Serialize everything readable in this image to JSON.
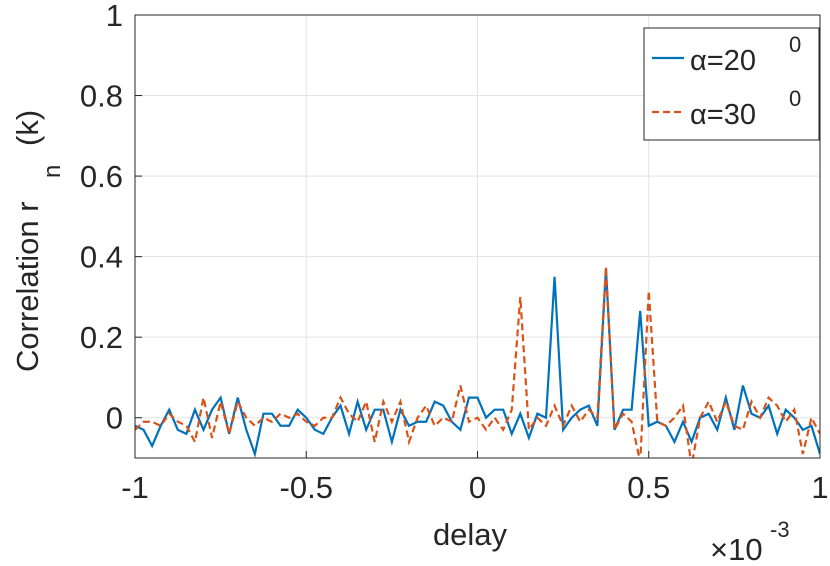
{
  "chart_data": {
    "type": "line",
    "xlabel": "delay",
    "x_exponent_base": "×10",
    "x_exponent": "-3",
    "ylabel": "Correlation r",
    "ylabel_subscript": "n",
    "ylabel_suffix": "(k)",
    "xlim": [
      -1,
      1
    ],
    "xticks": [
      -1,
      -0.5,
      0,
      0.5,
      1
    ],
    "ylim": [
      -0.1,
      1
    ],
    "yticks": [
      0,
      0.2,
      0.4,
      0.6,
      0.8,
      1
    ],
    "grid": true,
    "legend": "top-right",
    "x": [
      -1,
      -0.975,
      -0.95,
      -0.925,
      -0.9,
      -0.875,
      -0.85,
      -0.825,
      -0.8,
      -0.775,
      -0.75,
      -0.725,
      -0.7,
      -0.675,
      -0.65,
      -0.625,
      -0.6,
      -0.575,
      -0.55,
      -0.525,
      -0.5,
      -0.475,
      -0.45,
      -0.425,
      -0.4,
      -0.375,
      -0.35,
      -0.325,
      -0.3,
      -0.275,
      -0.25,
      -0.225,
      -0.2,
      -0.175,
      -0.15,
      -0.125,
      -0.1,
      -0.075,
      -0.05,
      -0.025,
      0,
      0.025,
      0.05,
      0.075,
      0.1,
      0.125,
      0.15,
      0.175,
      0.2,
      0.225,
      0.25,
      0.275,
      0.3,
      0.325,
      0.35,
      0.375,
      0.4,
      0.425,
      0.45,
      0.475,
      0.5,
      0.525,
      0.55,
      0.575,
      0.6,
      0.625,
      0.65,
      0.675,
      0.7,
      0.725,
      0.75,
      0.775,
      0.8,
      0.825,
      0.85,
      0.875,
      0.9,
      0.925,
      0.95,
      0.975,
      1
    ],
    "series": [
      {
        "name": "α=20",
        "name_superscript": "0",
        "color": "#0072bd",
        "dash": "solid",
        "values": [
          -0.02,
          -0.03,
          -0.07,
          -0.02,
          0.02,
          -0.03,
          -0.04,
          0.02,
          -0.03,
          0.02,
          0.05,
          -0.04,
          0.05,
          -0.03,
          -0.09,
          0.01,
          0.01,
          -0.02,
          -0.02,
          0.02,
          0.0,
          -0.03,
          -0.04,
          0.0,
          0.03,
          -0.04,
          0.04,
          -0.03,
          0.02,
          0.02,
          -0.06,
          0.02,
          -0.02,
          -0.01,
          -0.01,
          0.04,
          0.03,
          -0.01,
          -0.03,
          0.05,
          0.05,
          0.0,
          0.02,
          0.02,
          -0.04,
          0.01,
          -0.05,
          0.01,
          0.0,
          0.35,
          -0.03,
          0.0,
          0.02,
          0.03,
          -0.02,
          0.37,
          -0.03,
          0.02,
          0.02,
          0.265,
          -0.02,
          -0.01,
          -0.02,
          -0.06,
          -0.01,
          -0.06,
          0.0,
          0.01,
          -0.03,
          0.05,
          -0.03,
          0.08,
          0.01,
          0.0,
          0.03,
          -0.04,
          0.02,
          0.0,
          -0.03,
          -0.02,
          -0.09
        ]
      },
      {
        "name": "α=30",
        "name_superscript": "0",
        "color": "#d95319",
        "dash": "dashed",
        "values": [
          -0.03,
          -0.01,
          -0.01,
          -0.02,
          0.01,
          -0.01,
          -0.02,
          -0.06,
          0.05,
          -0.05,
          0.04,
          -0.04,
          0.04,
          0.0,
          -0.02,
          0.0,
          -0.01,
          0.01,
          0.0,
          0.01,
          -0.01,
          -0.02,
          0.0,
          0.0,
          0.05,
          0.01,
          -0.01,
          0.04,
          -0.06,
          0.04,
          -0.01,
          0.04,
          -0.06,
          0.0,
          0.03,
          -0.02,
          0.0,
          -0.01,
          0.08,
          -0.01,
          0.0,
          -0.03,
          0.0,
          -0.03,
          0.02,
          0.3,
          -0.03,
          0.0,
          -0.02,
          0.03,
          -0.02,
          0.03,
          -0.01,
          0.02,
          0.0,
          0.375,
          -0.03,
          0.01,
          -0.01,
          -0.11,
          0.315,
          -0.01,
          -0.02,
          0.0,
          0.03,
          -0.12,
          0.0,
          0.04,
          -0.01,
          0.04,
          -0.02,
          -0.03,
          0.04,
          0.0,
          0.05,
          0.03,
          -0.01,
          0.02,
          -0.09,
          0.0,
          -0.04
        ]
      }
    ]
  }
}
